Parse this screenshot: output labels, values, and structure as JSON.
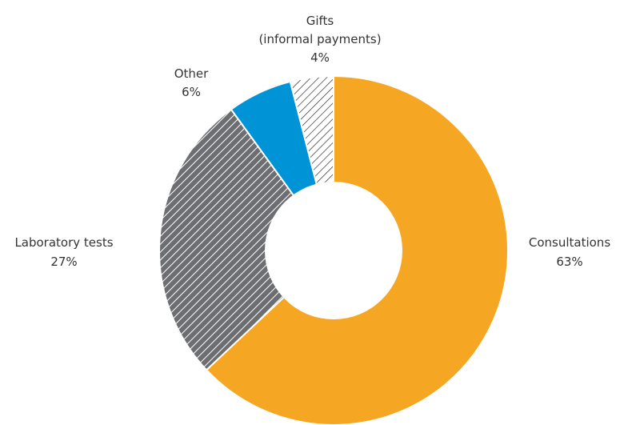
{
  "chart_data": {
    "type": "pie",
    "subtype": "donut",
    "slices": [
      {
        "name": "Consultations",
        "line1": "Consultations",
        "line2": "63%",
        "value": 63,
        "color": "#F5A623",
        "fill": "solid"
      },
      {
        "name": "Laboratory tests",
        "line1": "Laboratory tests",
        "line2": "27%",
        "value": 27,
        "color": "#6D6E71",
        "fill": "hatch"
      },
      {
        "name": "Other",
        "line1": "Other",
        "line2": "6%",
        "value": 6,
        "color": "#0093D6",
        "fill": "solid"
      },
      {
        "name": "Gifts (informal payments)",
        "line1": "Gifts",
        "line1b": "(informal payments)",
        "line2": "4%",
        "value": 4,
        "color": "#FFFFFF",
        "fill": "hatch"
      }
    ],
    "start": "12 o'clock",
    "direction": "clockwise",
    "legend": "none"
  }
}
